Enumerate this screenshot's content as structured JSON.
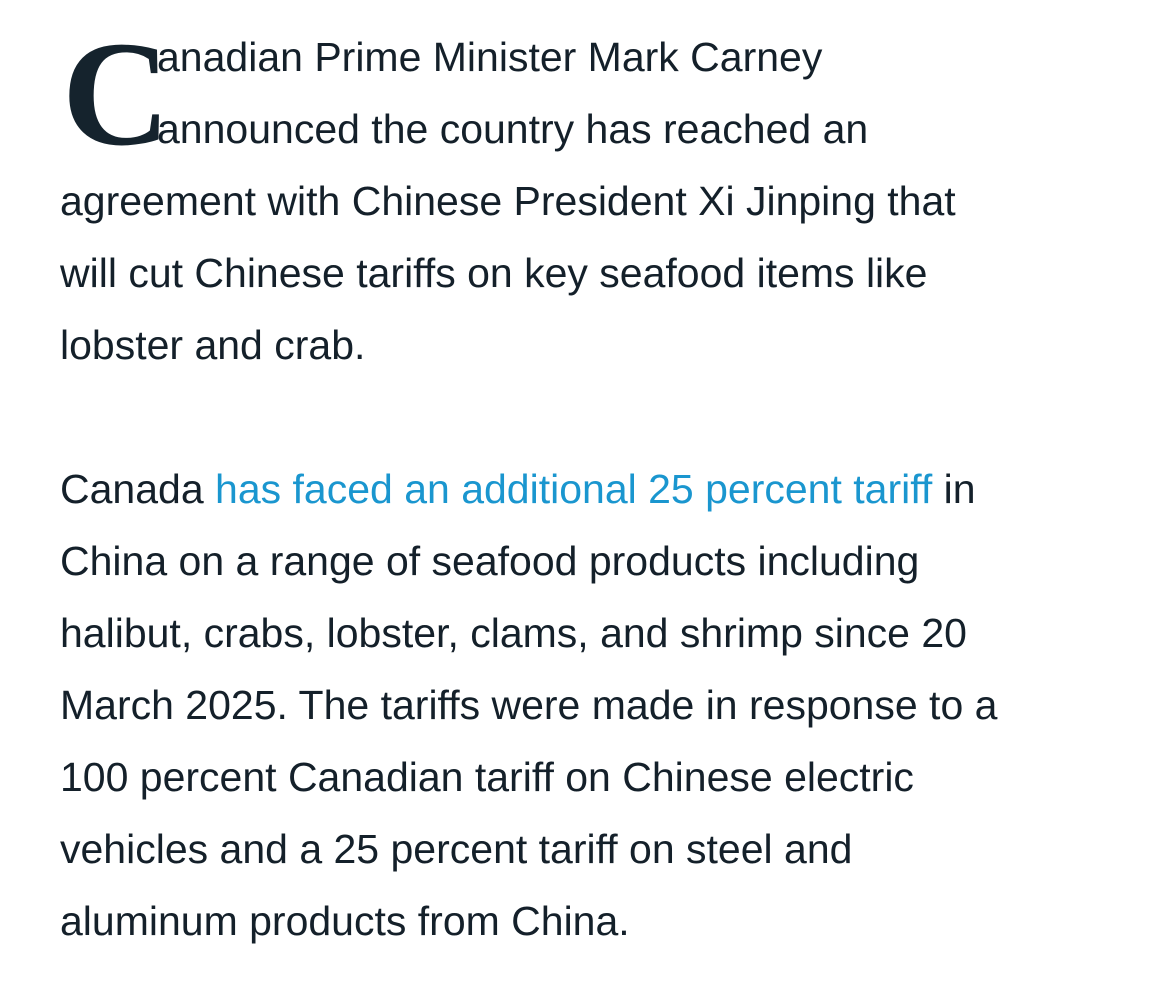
{
  "article": {
    "paragraph1": {
      "drop_cap": "C",
      "lines": [
        "anadian Prime Minister Mark Carney",
        "announced the country has reached an",
        "agreement with Chinese President Xi Jinping that",
        "will cut Chinese tariffs on key seafood items like",
        "lobster and crab."
      ]
    },
    "paragraph2": {
      "first_line": {
        "before": "Canada ",
        "link": "has faced an additional 25 percent tariff",
        "after": " in"
      },
      "lines": [
        "China on a range of seafood products including",
        "halibut, crabs, lobster, clams, and shrimp since 20",
        "March 2025. The tariffs were made in response to a",
        "100 percent Canadian tariff on Chinese electric",
        "vehicles and a 25 percent tariff on steel and",
        "aluminum products from China."
      ]
    },
    "colors": {
      "text": "#14202a",
      "link": "#1a96cf"
    }
  }
}
